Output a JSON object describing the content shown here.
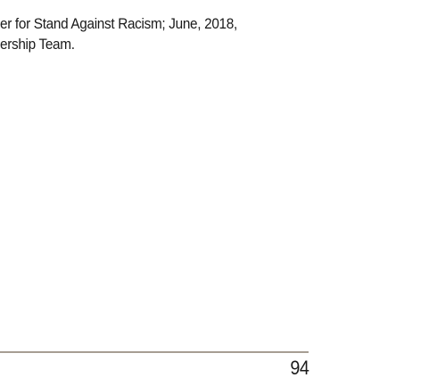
{
  "document": {
    "body_lines": [
      "er for Stand Against Racism; June, 2018,",
      "ership Team."
    ],
    "page_number": "94",
    "footer_rule_color": "#a69d93"
  }
}
